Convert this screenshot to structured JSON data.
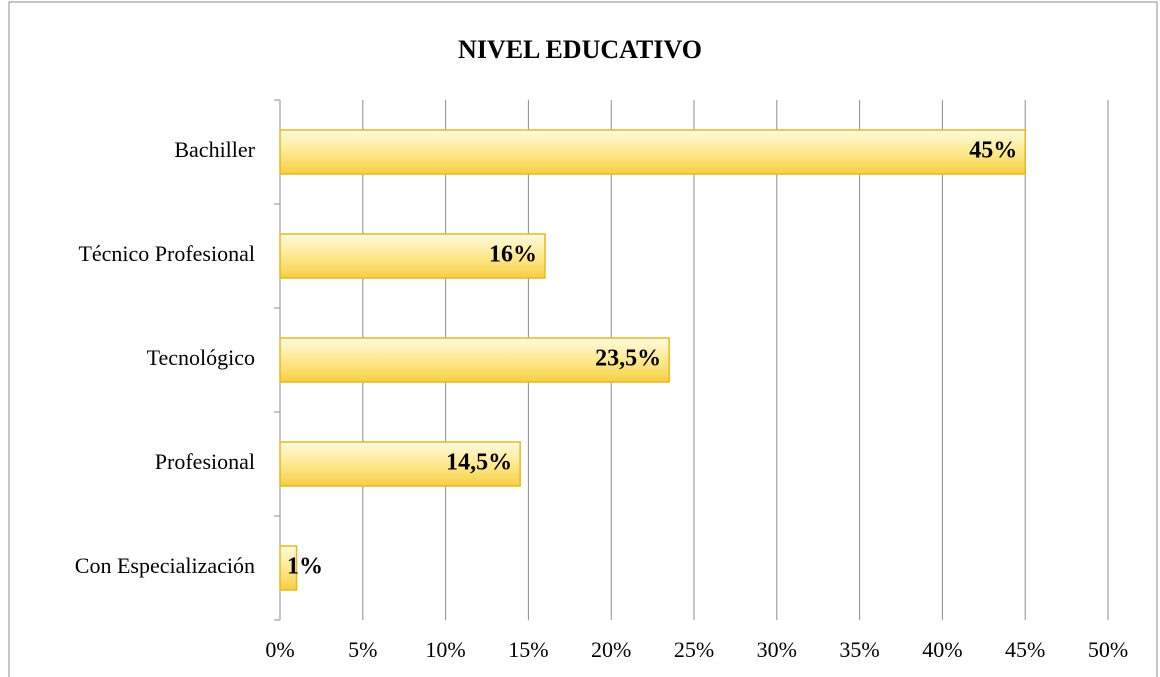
{
  "chart_data": {
    "type": "bar",
    "orientation": "horizontal",
    "title": "NIVEL EDUCATIVO",
    "categories": [
      "Bachiller",
      "Técnico Profesional",
      "Tecnológico",
      "Profesional",
      "Con Especialización"
    ],
    "values": [
      45,
      16,
      23.5,
      14.5,
      1
    ],
    "value_labels": [
      "45%",
      "16%",
      "23,5%",
      "14,5%",
      "1%"
    ],
    "color": "#fbd866",
    "xlim": [
      0,
      50
    ],
    "xticks": [
      {
        "value": 0,
        "label": "0%"
      },
      {
        "value": 5,
        "label": "5%"
      },
      {
        "value": 10,
        "label": "10%"
      },
      {
        "value": 15,
        "label": "15%"
      },
      {
        "value": 20,
        "label": "20%"
      },
      {
        "value": 25,
        "label": "25%"
      },
      {
        "value": 30,
        "label": "30%"
      },
      {
        "value": 35,
        "label": "35%"
      },
      {
        "value": 40,
        "label": "40%"
      },
      {
        "value": 45,
        "label": "45%"
      },
      {
        "value": 50,
        "label": "50%"
      }
    ],
    "grid": true
  }
}
